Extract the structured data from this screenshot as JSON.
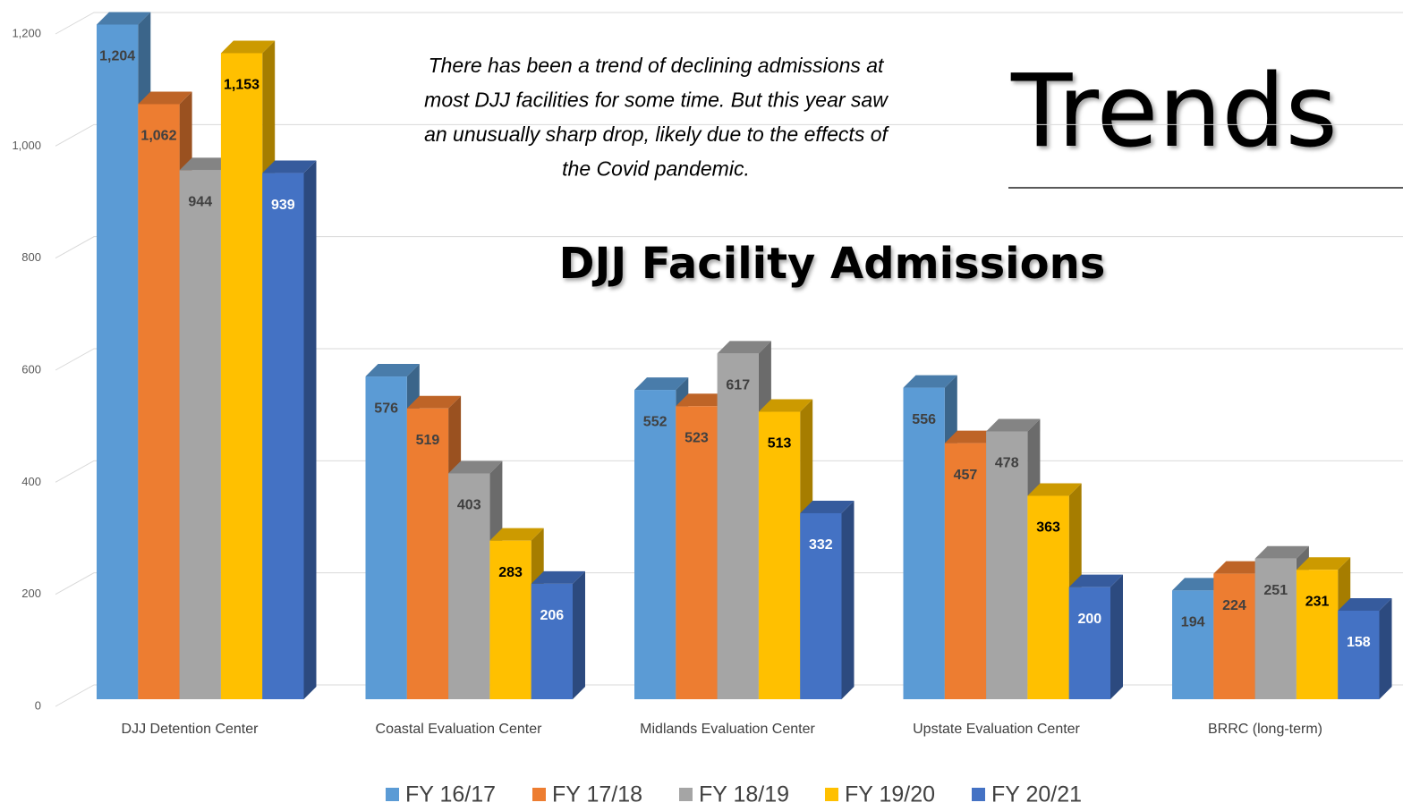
{
  "chart_data": {
    "type": "bar3d",
    "title": "DJJ Facility Admissions",
    "heading": "Trends",
    "annotation": [
      "There has been a trend of declining admissions at",
      "most DJJ facilities for some time. But this year saw",
      "an unusually sharp drop, likely due to the effects of",
      "the Covid pandemic."
    ],
    "categories": [
      "DJJ Detention Center",
      "Coastal Evaluation Center",
      "Midlands Evaluation Center",
      "Upstate Evaluation Center",
      "BRRC (long-term)"
    ],
    "series": [
      {
        "name": "FY 16/17",
        "color": "#5b9bd5",
        "values": [
          1204,
          576,
          552,
          556,
          194
        ],
        "value_labels": [
          "1,204",
          "576",
          "552",
          "556",
          "194"
        ]
      },
      {
        "name": "FY 17/18",
        "color": "#ed7d31",
        "values": [
          1062,
          519,
          523,
          457,
          224
        ],
        "value_labels": [
          "1,062",
          "519",
          "523",
          "457",
          "224"
        ]
      },
      {
        "name": "FY 18/19",
        "color": "#a5a5a5",
        "values": [
          944,
          403,
          617,
          478,
          251
        ],
        "value_labels": [
          "944",
          "403",
          "617",
          "478",
          "251"
        ]
      },
      {
        "name": "FY 19/20",
        "color": "#ffc000",
        "values": [
          1153,
          283,
          513,
          363,
          231
        ],
        "value_labels": [
          "1,153",
          "283",
          "513",
          "363",
          "231"
        ]
      },
      {
        "name": "FY 20/21",
        "color": "#4472c4",
        "values": [
          939,
          206,
          332,
          200,
          158
        ],
        "value_labels": [
          "939",
          "206",
          "332",
          "200",
          "158"
        ]
      }
    ],
    "ylim": [
      0,
      1200
    ],
    "yticks": [
      0,
      200,
      400,
      600,
      800,
      {
        "value": 1000,
        "label": "1,000"
      },
      {
        "value": 1200,
        "label": "1,200"
      }
    ],
    "grid": true,
    "legend": "bottom"
  }
}
